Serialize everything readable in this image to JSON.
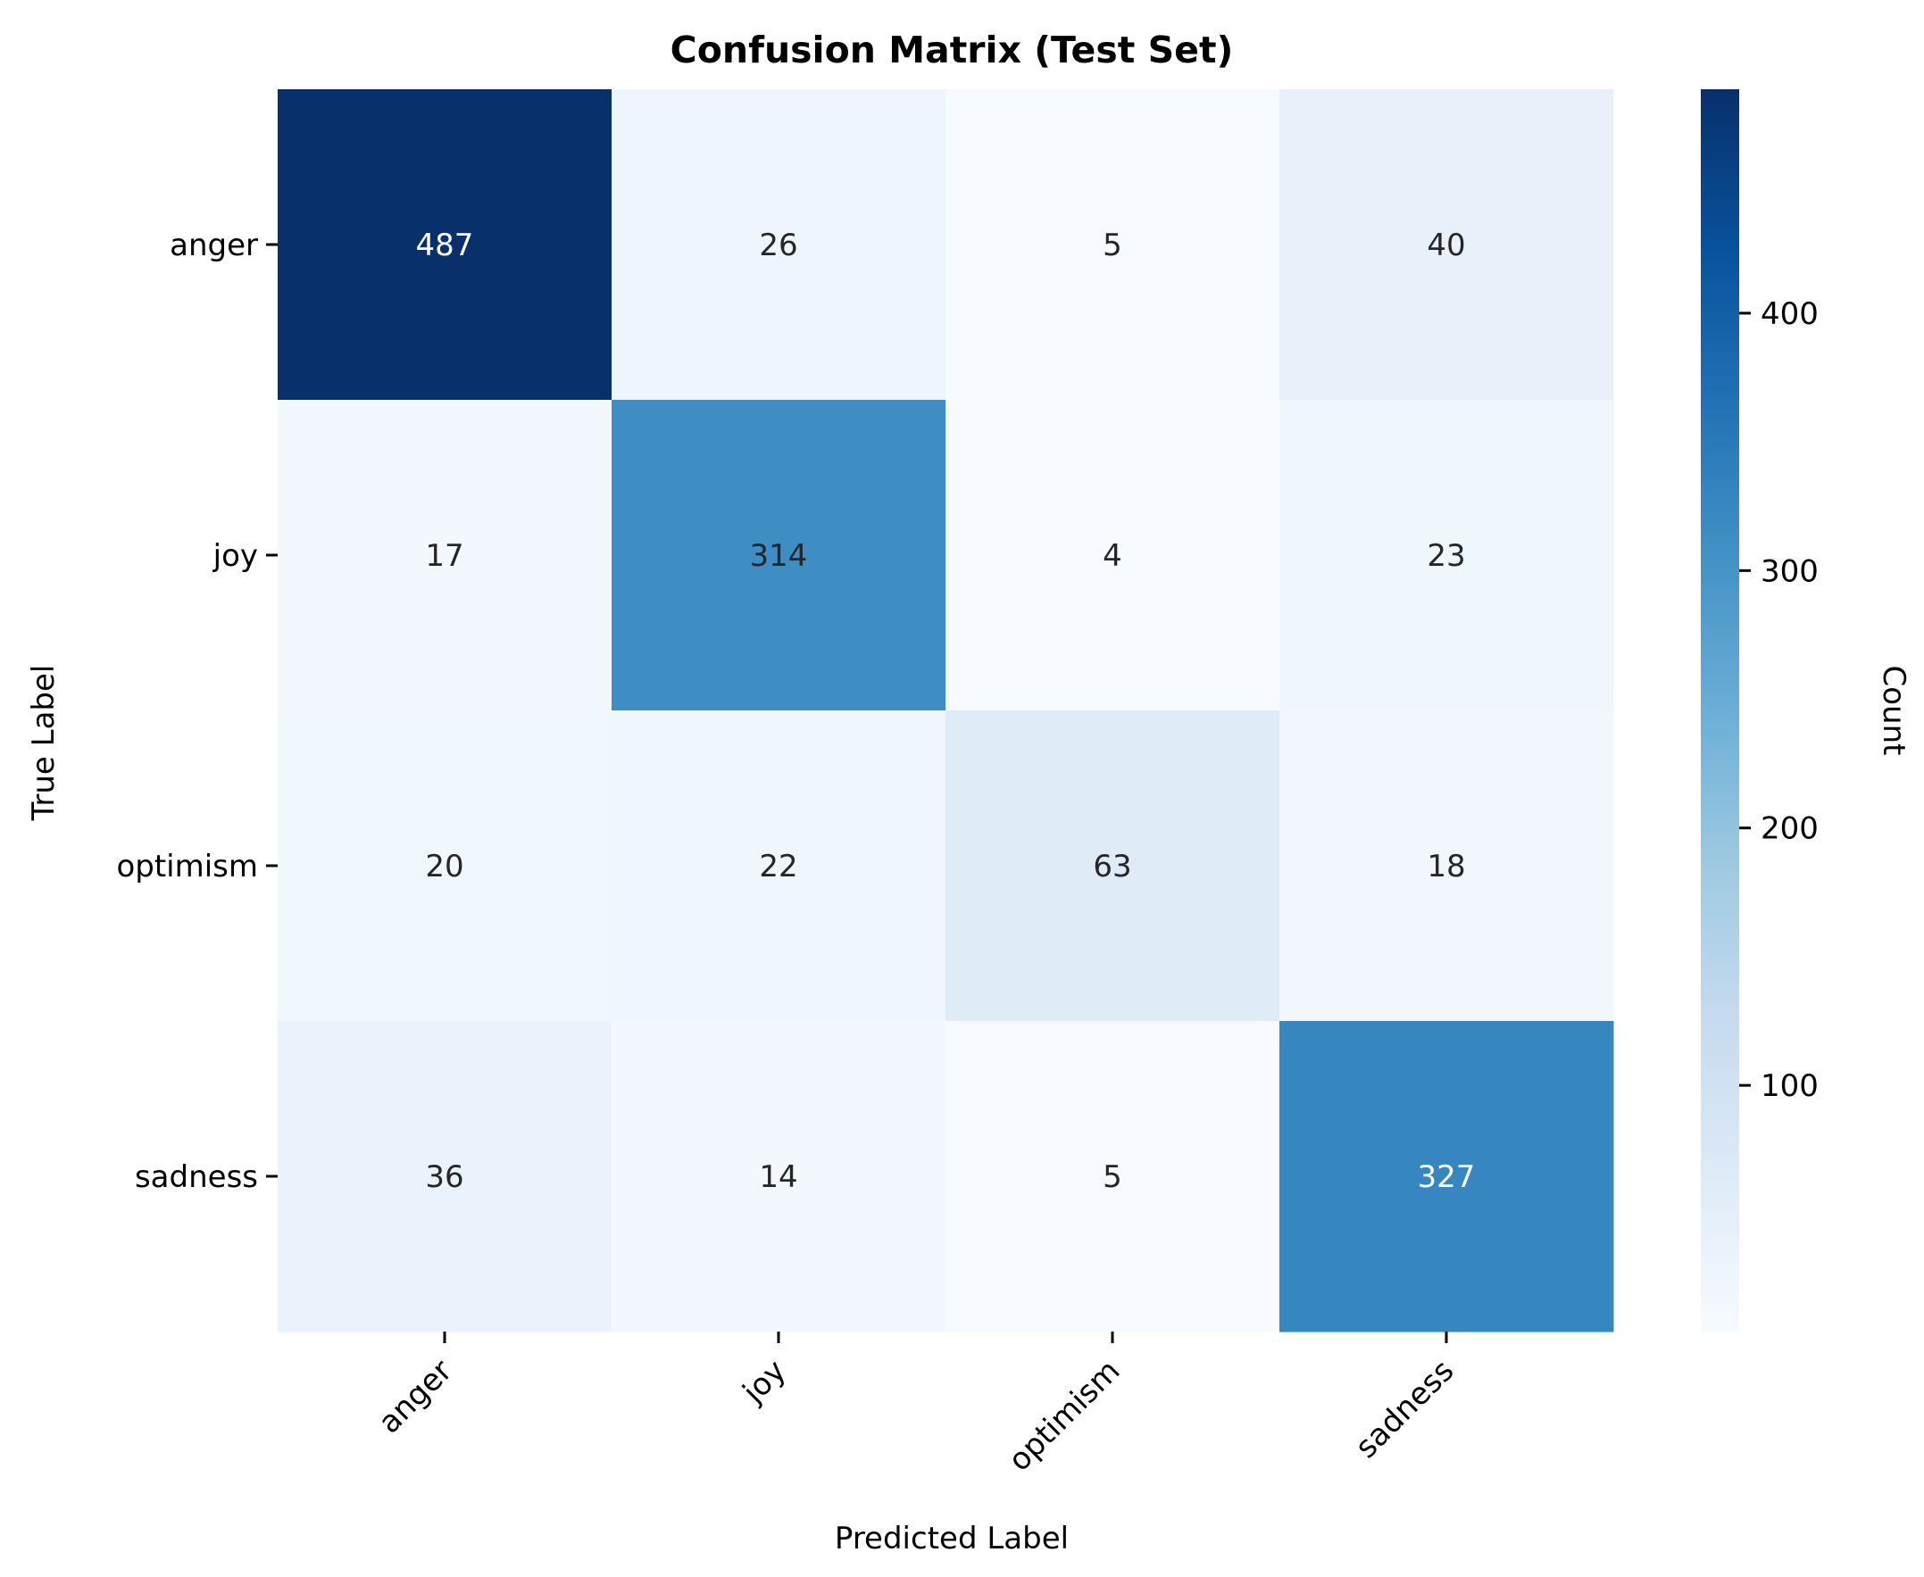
{
  "chart_data": {
    "type": "heatmap",
    "title": "Confusion Matrix (Test Set)",
    "xlabel": "Predicted Label",
    "ylabel": "True Label",
    "x_categories": [
      "anger",
      "joy",
      "optimism",
      "sadness"
    ],
    "y_categories": [
      "anger",
      "joy",
      "optimism",
      "sadness"
    ],
    "values": [
      [
        487,
        26,
        5,
        40
      ],
      [
        17,
        314,
        4,
        23
      ],
      [
        20,
        22,
        63,
        18
      ],
      [
        36,
        14,
        5,
        327
      ]
    ],
    "colormap": "Blues",
    "colorbar": {
      "label": "Count",
      "range": [
        4,
        487
      ],
      "ticks": [
        100,
        200,
        300,
        400
      ]
    },
    "x_tick_rotation_deg": 45,
    "colors": {
      "low": "#f7fbff",
      "high": "#08306b",
      "text_dark": "#262626",
      "text_light": "#ffffff"
    }
  }
}
